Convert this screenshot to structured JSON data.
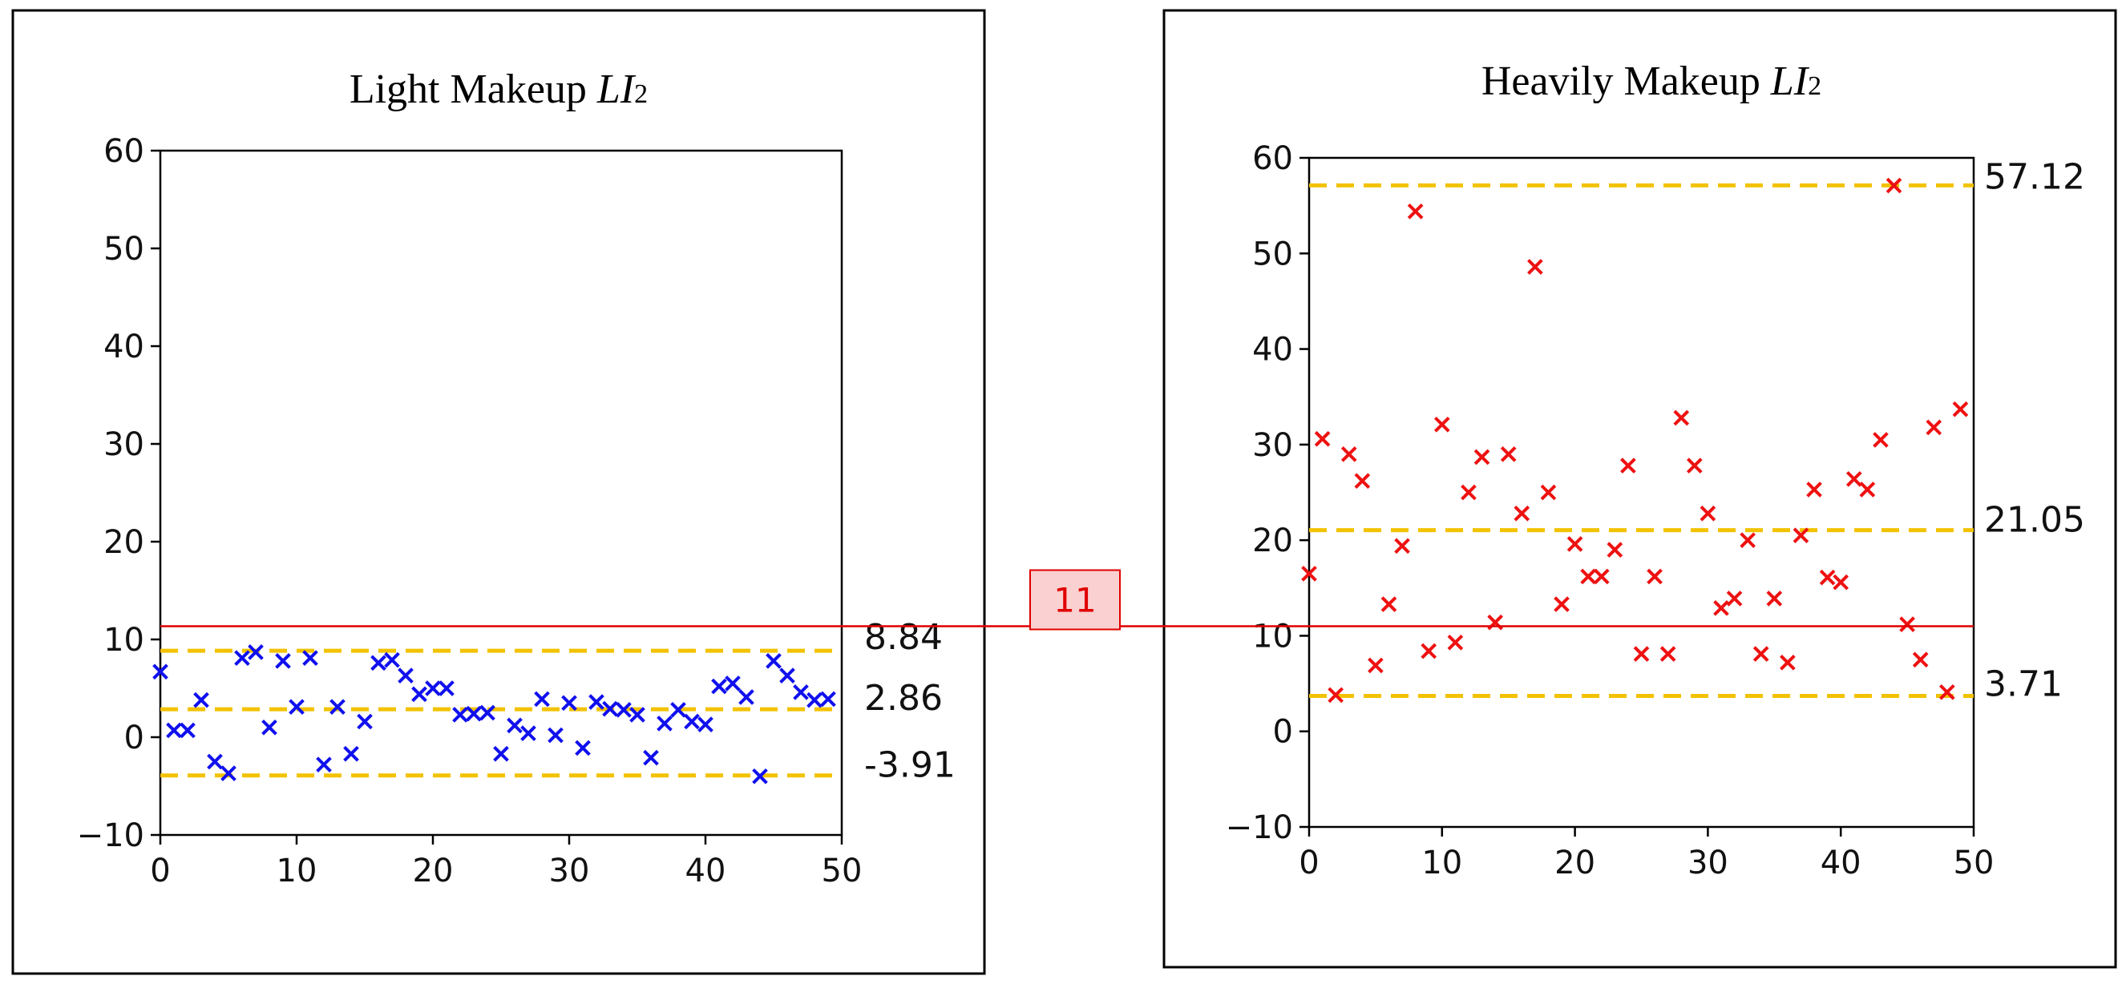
{
  "colors": {
    "light_marker": "#1010ee",
    "heavy_marker": "#ee1111",
    "reference_line": "#f2c200",
    "threshold_line": "#e00000",
    "threshold_badge_fill": "#fbd0d0",
    "frame": "#000000"
  },
  "threshold": {
    "value": 11,
    "label": "11"
  },
  "chart_data": [
    {
      "type": "scatter",
      "title": "Light Makeup ",
      "title_italic": "LI",
      "title_sub": "2",
      "marker": "x",
      "ylim": [
        -10,
        60
      ],
      "xlim": [
        0,
        50
      ],
      "yticks": [
        60,
        50,
        40,
        30,
        20,
        10,
        0,
        -10
      ],
      "xticks": [
        0,
        10,
        20,
        30,
        40,
        50
      ],
      "ytick_labels": [
        "60",
        "50",
        "40",
        "30",
        "20",
        "10",
        "0",
        "−10"
      ],
      "xtick_labels": [
        "0",
        "10",
        "20",
        "30",
        "40",
        "50"
      ],
      "reference_lines": [
        {
          "value": 8.84,
          "label": "8.84"
        },
        {
          "value": 2.86,
          "label": "2.86"
        },
        {
          "value": -3.91,
          "label": "-3.91"
        }
      ],
      "series": [
        {
          "name": "Light Makeup",
          "x": [
            0,
            1,
            2,
            3,
            4,
            5,
            6,
            7,
            8,
            9,
            10,
            11,
            12,
            13,
            14,
            15,
            16,
            17,
            18,
            19,
            20,
            21,
            22,
            23,
            24,
            25,
            26,
            27,
            28,
            29,
            30,
            31,
            32,
            33,
            34,
            35,
            36,
            37,
            38,
            39,
            40,
            41,
            42,
            43,
            44,
            45,
            46,
            47,
            48,
            49
          ],
          "y": [
            6.7,
            0.7,
            0.7,
            3.8,
            -2.5,
            -3.7,
            8.1,
            8.7,
            1.0,
            7.8,
            3.1,
            8.1,
            -2.8,
            3.1,
            -1.7,
            1.6,
            7.6,
            7.9,
            6.3,
            4.4,
            5.0,
            5.0,
            2.3,
            2.4,
            2.5,
            -1.7,
            1.2,
            0.4,
            3.9,
            0.2,
            3.5,
            -1.1,
            3.6,
            2.9,
            2.8,
            2.3,
            -2.1,
            1.4,
            2.8,
            1.6,
            1.3,
            5.2,
            5.5,
            4.1,
            -4.0,
            7.8,
            6.3,
            4.6,
            3.8,
            3.9
          ]
        }
      ]
    },
    {
      "type": "scatter",
      "title": "Heavily Makeup ",
      "title_italic": "LI",
      "title_sub": "2",
      "marker": "x",
      "ylim": [
        -10,
        60
      ],
      "xlim": [
        0,
        50
      ],
      "yticks": [
        60,
        50,
        40,
        30,
        20,
        10,
        0,
        -10
      ],
      "xticks": [
        0,
        10,
        20,
        30,
        40,
        50
      ],
      "ytick_labels": [
        "60",
        "50",
        "40",
        "30",
        "20",
        "10",
        "0",
        "−10"
      ],
      "xtick_labels": [
        "0",
        "10",
        "20",
        "30",
        "40",
        "50"
      ],
      "reference_lines": [
        {
          "value": 57.12,
          "label": "57.12"
        },
        {
          "value": 21.05,
          "label": "21.05"
        },
        {
          "value": 3.71,
          "label": "3.71"
        }
      ],
      "series": [
        {
          "name": "Heavily Makeup",
          "x": [
            0,
            1,
            2,
            3,
            4,
            5,
            6,
            7,
            8,
            9,
            10,
            11,
            12,
            13,
            14,
            15,
            16,
            17,
            18,
            19,
            20,
            21,
            22,
            23,
            24,
            25,
            26,
            27,
            28,
            29,
            30,
            31,
            32,
            33,
            34,
            35,
            36,
            37,
            38,
            39,
            40,
            41,
            42,
            43,
            44,
            45,
            46,
            47,
            48,
            49
          ],
          "y": [
            16.5,
            30.6,
            3.8,
            29.0,
            26.2,
            6.9,
            13.3,
            19.4,
            54.4,
            8.4,
            32.1,
            9.3,
            25.0,
            28.7,
            11.4,
            29.0,
            22.8,
            48.6,
            25.0,
            13.3,
            19.6,
            16.2,
            16.2,
            19.0,
            27.8,
            8.1,
            16.2,
            8.1,
            32.8,
            27.8,
            22.8,
            12.9,
            13.9,
            20.0,
            8.1,
            13.9,
            7.2,
            20.5,
            25.3,
            16.1,
            15.6,
            26.4,
            25.3,
            30.5,
            57.1,
            11.2,
            7.5,
            31.8,
            4.1,
            33.7
          ]
        }
      ]
    }
  ]
}
